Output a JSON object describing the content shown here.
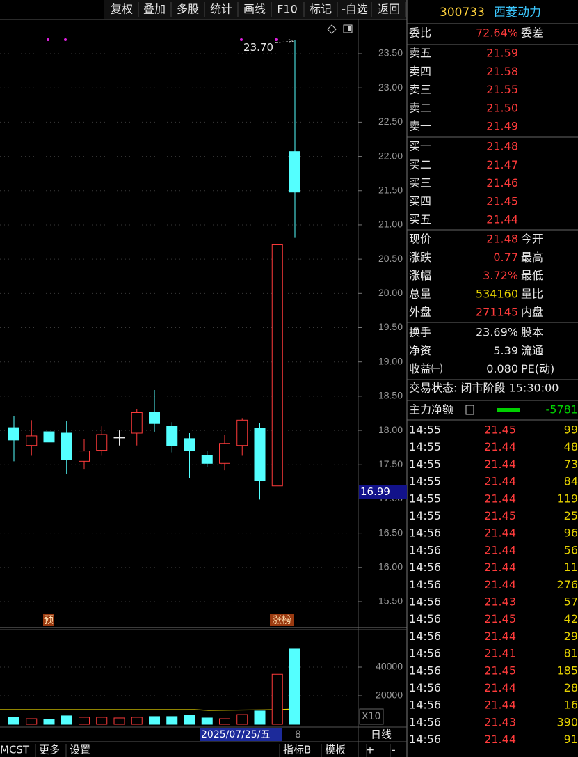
{
  "toolbar": [
    "复权",
    "叠加",
    "多股",
    "统计",
    "画线",
    "F10",
    "标记",
    "-自选",
    "返回"
  ],
  "stock": {
    "code": "300733",
    "name": "西菱动力"
  },
  "chart": {
    "price_ticks": [
      {
        "value": 23.5,
        "label": "23.50"
      },
      {
        "value": 23,
        "label": "23.00"
      },
      {
        "value": 22.5,
        "label": "22.50"
      },
      {
        "value": 22,
        "label": "22.00"
      },
      {
        "value": 21.5,
        "label": "21.50"
      },
      {
        "value": 21,
        "label": "21.00"
      },
      {
        "value": 20.5,
        "label": "20.50"
      },
      {
        "value": 20,
        "label": "20.00"
      },
      {
        "value": 19.5,
        "label": "19.50"
      },
      {
        "value": 19,
        "label": "19.00"
      },
      {
        "value": 18.5,
        "label": "18.50"
      },
      {
        "value": 18,
        "label": "18.00"
      },
      {
        "value": 17.5,
        "label": "17.50"
      },
      {
        "value": 17,
        "label": "17.00"
      },
      {
        "value": 16.5,
        "label": "16.50"
      },
      {
        "value": 16,
        "label": "16.00"
      },
      {
        "value": 15.5,
        "label": "15.50"
      }
    ],
    "candles": [
      {
        "open": 18.04,
        "high": 18.21,
        "low": 17.55,
        "close": 17.86
      },
      {
        "open": 17.78,
        "high": 18.15,
        "low": 17.63,
        "close": 17.92
      },
      {
        "open": 17.98,
        "high": 18.12,
        "low": 17.6,
        "close": 17.83
      },
      {
        "open": 17.96,
        "high": 18.14,
        "low": 17.36,
        "close": 17.57
      },
      {
        "open": 17.55,
        "high": 17.87,
        "low": 17.43,
        "close": 17.7
      },
      {
        "open": 17.71,
        "high": 18.06,
        "low": 17.63,
        "close": 17.94
      },
      {
        "open": 17.9,
        "high": 18.0,
        "low": 17.78,
        "close": 17.9
      },
      {
        "open": 17.96,
        "high": 18.31,
        "low": 17.78,
        "close": 18.26
      },
      {
        "open": 18.26,
        "high": 18.59,
        "low": 17.98,
        "close": 18.1
      },
      {
        "open": 18.06,
        "high": 18.12,
        "low": 17.68,
        "close": 17.78
      },
      {
        "open": 17.88,
        "high": 17.96,
        "low": 17.31,
        "close": 17.71
      },
      {
        "open": 17.63,
        "high": 17.7,
        "low": 17.47,
        "close": 17.52
      },
      {
        "open": 17.52,
        "high": 17.94,
        "low": 17.42,
        "close": 17.81
      },
      {
        "open": 17.78,
        "high": 18.18,
        "low": 17.63,
        "close": 18.15
      },
      {
        "open": 18.03,
        "high": 18.11,
        "low": 16.99,
        "close": 17.27
      },
      {
        "open": 17.19,
        "high": 20.71,
        "low": 17.19,
        "close": 20.71
      },
      {
        "open": 22.07,
        "high": 23.7,
        "low": 20.81,
        "close": 21.48
      }
    ],
    "high_marker": {
      "value": 23.7,
      "label": "23.70"
    },
    "current_price": {
      "value": 16.99,
      "label": "16.99"
    },
    "tags": [
      "预",
      "涨榜"
    ]
  },
  "volume": {
    "ticks": [
      20000,
      40000
    ],
    "values": [
      4900,
      3900,
      3400,
      5900,
      4900,
      4900,
      4400,
      4900,
      5400,
      5400,
      6300,
      4400,
      3900,
      6800,
      9300,
      35000,
      52700
    ],
    "multiplier": "X10"
  },
  "footer": {
    "date": "2025/07/25/五",
    "cursor": "8",
    "period": "日线"
  },
  "bottom_bar": [
    "MCST",
    "更多",
    "设置",
    "指标B",
    "模板",
    "+",
    "-"
  ],
  "quote": {
    "order_ratio": {
      "label": "委比",
      "value": "72.64%",
      "label2": "委差"
    },
    "sells": [
      {
        "label": "卖五",
        "price": "21.59"
      },
      {
        "label": "卖四",
        "price": "21.58"
      },
      {
        "label": "卖三",
        "price": "21.55"
      },
      {
        "label": "卖二",
        "price": "21.50"
      },
      {
        "label": "卖一",
        "price": "21.49"
      }
    ],
    "buys": [
      {
        "label": "买一",
        "price": "21.48"
      },
      {
        "label": "买二",
        "price": "21.47"
      },
      {
        "label": "买三",
        "price": "21.46"
      },
      {
        "label": "买四",
        "price": "21.45"
      },
      {
        "label": "买五",
        "price": "21.44"
      }
    ],
    "stats": [
      {
        "label": "现价",
        "value": "21.48",
        "label2": "今开",
        "color": "#ff3b3b"
      },
      {
        "label": "涨跌",
        "value": "0.77",
        "label2": "最高",
        "color": "#ff3b3b"
      },
      {
        "label": "涨幅",
        "value": "3.72%",
        "label2": "最低",
        "color": "#ff3b3b"
      },
      {
        "label": "总量",
        "value": "534160",
        "label2": "量比",
        "color": "#e6d200"
      },
      {
        "label": "外盘",
        "value": "271145",
        "label2": "内盘",
        "color": "#ff3b3b"
      }
    ],
    "stats2": [
      {
        "label": "换手",
        "value": "23.69%",
        "label2": "股本"
      },
      {
        "label": "净资",
        "value": "5.39",
        "label2": "流通"
      },
      {
        "label": "收益㈠",
        "value": "0.080",
        "label2": "PE(动)"
      }
    ],
    "status": "交易状态: 闭市阶段 15:30:00",
    "main_flow": {
      "label": "主力净额",
      "value": "-5781"
    }
  },
  "trades": [
    [
      "14:55",
      "21.45",
      "99"
    ],
    [
      "14:55",
      "21.44",
      "48"
    ],
    [
      "14:55",
      "21.44",
      "73"
    ],
    [
      "14:55",
      "21.44",
      "84"
    ],
    [
      "14:55",
      "21.44",
      "119"
    ],
    [
      "14:55",
      "21.45",
      "25"
    ],
    [
      "14:56",
      "21.44",
      "96"
    ],
    [
      "14:56",
      "21.44",
      "56"
    ],
    [
      "14:56",
      "21.44",
      "11"
    ],
    [
      "14:56",
      "21.44",
      "276"
    ],
    [
      "14:56",
      "21.43",
      "57"
    ],
    [
      "14:56",
      "21.45",
      "42"
    ],
    [
      "14:56",
      "21.44",
      "29"
    ],
    [
      "14:56",
      "21.41",
      "81"
    ],
    [
      "14:56",
      "21.45",
      "185"
    ],
    [
      "14:56",
      "21.44",
      "28"
    ],
    [
      "14:56",
      "21.44",
      "16"
    ],
    [
      "14:56",
      "21.43",
      "390"
    ],
    [
      "14:56",
      "21.44",
      "91"
    ]
  ]
}
